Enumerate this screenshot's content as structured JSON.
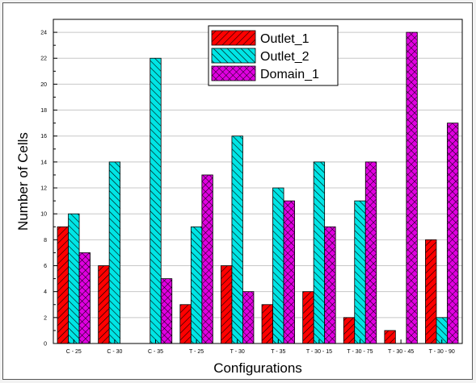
{
  "chart_data": {
    "type": "bar",
    "title": "",
    "xlabel": "Configurations",
    "ylabel": "Number of Cells",
    "categories": [
      "C - 25",
      "C - 30",
      "C - 35",
      "T - 25",
      "T - 30",
      "T - 35",
      "T - 30 - 15",
      "T - 30 - 75",
      "T - 30 - 45",
      "T - 30 - 90"
    ],
    "series": [
      {
        "name": "Outlet_1",
        "values": [
          9,
          6,
          0,
          3,
          6,
          3,
          4,
          2,
          1,
          8
        ],
        "color": "#ff0000",
        "hatch": "forward-diagonal"
      },
      {
        "name": "Outlet_2",
        "values": [
          10,
          14,
          22,
          9,
          16,
          12,
          14,
          11,
          0,
          2
        ],
        "color": "#00e5e5",
        "hatch": "back-diagonal"
      },
      {
        "name": "Domain_1",
        "values": [
          7,
          0,
          5,
          13,
          4,
          11,
          9,
          14,
          24,
          17
        ],
        "color": "#e000e0",
        "hatch": "crosshatch"
      }
    ],
    "ylim": [
      0,
      25
    ],
    "yticks": [
      0,
      2,
      4,
      6,
      8,
      10,
      12,
      14,
      16,
      18,
      20,
      22,
      24
    ],
    "grid": true,
    "legend_position": "top-center"
  }
}
